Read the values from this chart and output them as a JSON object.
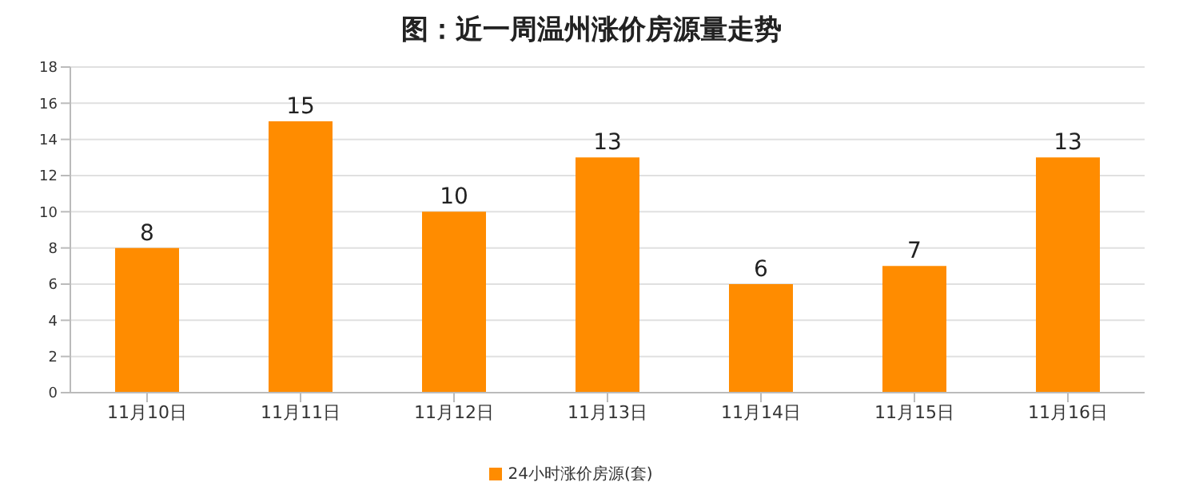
{
  "chart_data": {
    "type": "bar",
    "title": "图：近一周温州涨价房源量走势",
    "categories": [
      "11月10日",
      "11月11日",
      "11月12日",
      "11月13日",
      "11月14日",
      "11月15日",
      "11月16日"
    ],
    "series": [
      {
        "name": "24小时涨价房源(套)",
        "color": "#ff8c00",
        "values": [
          8,
          15,
          10,
          13,
          6,
          7,
          13
        ]
      }
    ],
    "ylim": [
      0,
      18
    ],
    "yticks": [
      0,
      2,
      4,
      6,
      8,
      10,
      12,
      14,
      16,
      18
    ],
    "grid": "y",
    "legend": "bottom",
    "data_labels": true
  }
}
